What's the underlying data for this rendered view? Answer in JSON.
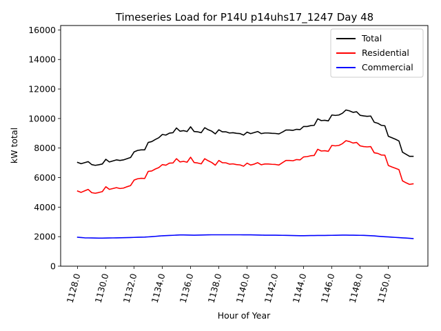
{
  "chart_data": {
    "type": "line",
    "title": "Timeseries Load for P14U p14uhs17_1247  Day 48",
    "xlabel": "Hour of Year",
    "ylabel": "kW total",
    "xlim": [
      1126.8,
      1152.8
    ],
    "ylim": [
      0,
      16300
    ],
    "x_ticks": [
      1128.0,
      1130.0,
      1132.0,
      1134.0,
      1136.0,
      1138.0,
      1140.0,
      1142.0,
      1144.0,
      1146.0,
      1148.0,
      1150.0
    ],
    "x_tick_labels": [
      "1128.0",
      "1130.0",
      "1132.0",
      "1134.0",
      "1136.0",
      "1138.0",
      "1140.0",
      "1142.0",
      "1144.0",
      "1146.0",
      "1148.0",
      "1150.0"
    ],
    "y_ticks": [
      0,
      2000,
      4000,
      6000,
      8000,
      10000,
      12000,
      14000,
      16000
    ],
    "y_tick_labels": [
      "0",
      "2000",
      "4000",
      "6000",
      "8000",
      "10000",
      "12000",
      "14000",
      "16000"
    ],
    "grid": false,
    "legend_position": "top-right",
    "x_start": 1128.0,
    "x_step": 0.25,
    "series": [
      {
        "name": "Total",
        "color": "#000000",
        "values": [
          7030,
          6940,
          7010,
          7080,
          6880,
          6830,
          6870,
          6920,
          7240,
          7060,
          7130,
          7200,
          7160,
          7200,
          7280,
          7360,
          7740,
          7840,
          7880,
          7880,
          8380,
          8440,
          8580,
          8700,
          8920,
          8880,
          9010,
          9040,
          9360,
          9140,
          9180,
          9120,
          9440,
          9120,
          9100,
          9040,
          9380,
          9240,
          9140,
          8960,
          9240,
          9100,
          9100,
          9020,
          9040,
          9000,
          8980,
          8880,
          9080,
          8980,
          9050,
          9120,
          8980,
          9020,
          9020,
          9000,
          8990,
          8960,
          9080,
          9220,
          9220,
          9200,
          9270,
          9250,
          9460,
          9460,
          9520,
          9540,
          9980,
          9860,
          9880,
          9840,
          10240,
          10210,
          10240,
          10360,
          10580,
          10520,
          10420,
          10460,
          10220,
          10180,
          10150,
          10170,
          9750,
          9680,
          9540,
          9510,
          8800,
          8700,
          8600,
          8480,
          7720,
          7580,
          7440,
          7440
        ]
      },
      {
        "name": "Residential",
        "color": "#ff0000",
        "values": [
          5090,
          5000,
          5100,
          5200,
          4980,
          4940,
          4990,
          5050,
          5380,
          5200,
          5260,
          5320,
          5260,
          5290,
          5380,
          5460,
          5830,
          5920,
          5950,
          5940,
          6420,
          6450,
          6580,
          6680,
          6880,
          6840,
          6980,
          6990,
          7280,
          7060,
          7100,
          7040,
          7380,
          7020,
          6990,
          6930,
          7280,
          7140,
          7020,
          6840,
          7160,
          7010,
          7000,
          6910,
          6930,
          6880,
          6860,
          6770,
          6980,
          6850,
          6910,
          7010,
          6870,
          6920,
          6920,
          6900,
          6890,
          6850,
          7010,
          7160,
          7160,
          7140,
          7220,
          7200,
          7400,
          7420,
          7480,
          7500,
          7920,
          7800,
          7820,
          7780,
          8180,
          8150,
          8180,
          8300,
          8500,
          8440,
          8340,
          8380,
          8150,
          8100,
          8080,
          8100,
          7680,
          7640,
          7530,
          7520,
          6820,
          6720,
          6630,
          6540,
          5780,
          5650,
          5540,
          5580
        ]
      },
      {
        "name": "Commercial",
        "color": "#0000ff",
        "values": [
          1960,
          1940,
          1920,
          1915,
          1910,
          1905,
          1900,
          1900,
          1905,
          1910,
          1915,
          1920,
          1925,
          1930,
          1935,
          1940,
          1950,
          1960,
          1965,
          1970,
          1985,
          2000,
          2020,
          2040,
          2060,
          2070,
          2080,
          2090,
          2105,
          2115,
          2115,
          2110,
          2105,
          2100,
          2105,
          2110,
          2115,
          2120,
          2125,
          2125,
          2125,
          2125,
          2125,
          2125,
          2125,
          2125,
          2125,
          2120,
          2120,
          2120,
          2115,
          2110,
          2105,
          2100,
          2100,
          2100,
          2100,
          2095,
          2090,
          2085,
          2080,
          2075,
          2070,
          2065,
          2065,
          2070,
          2075,
          2075,
          2080,
          2080,
          2080,
          2085,
          2090,
          2095,
          2100,
          2105,
          2105,
          2100,
          2100,
          2095,
          2090,
          2085,
          2075,
          2065,
          2050,
          2030,
          2010,
          1995,
          1980,
          1965,
          1950,
          1935,
          1920,
          1905,
          1890,
          1870
        ]
      }
    ]
  }
}
